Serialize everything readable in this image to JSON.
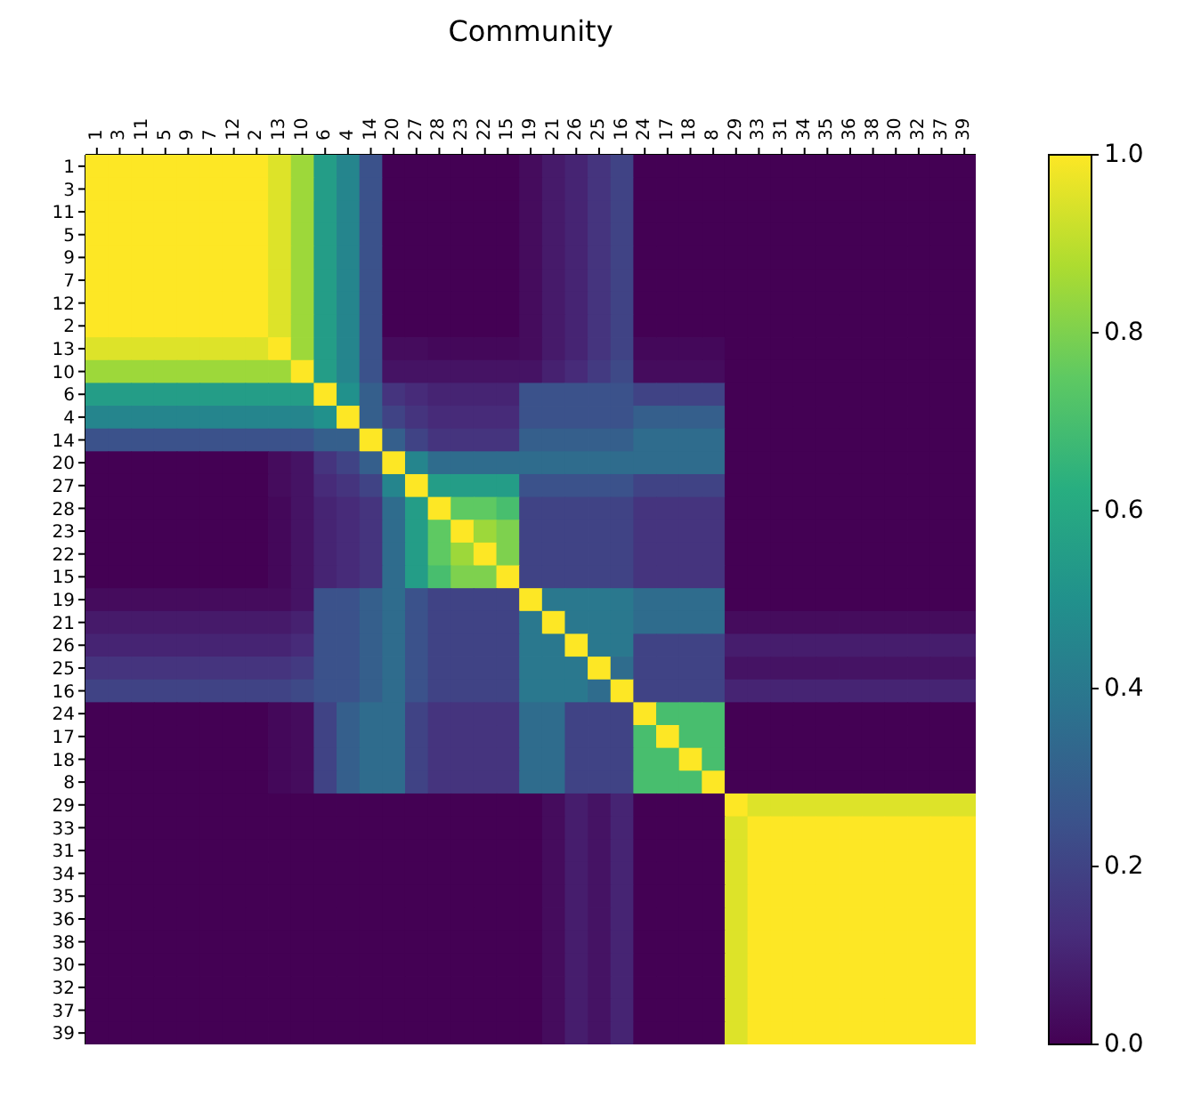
{
  "chart_data": {
    "type": "heatmap",
    "title": "Community",
    "categories": [
      "1",
      "3",
      "11",
      "5",
      "9",
      "7",
      "12",
      "2",
      "13",
      "10",
      "6",
      "4",
      "14",
      "20",
      "27",
      "28",
      "23",
      "22",
      "15",
      "19",
      "21",
      "26",
      "25",
      "16",
      "24",
      "17",
      "18",
      "8",
      "29",
      "33",
      "31",
      "34",
      "35",
      "36",
      "38",
      "30",
      "32",
      "37",
      "39"
    ],
    "y_categories": [
      "1",
      "3",
      "11",
      "5",
      "9",
      "7",
      "12",
      "2",
      "13",
      "10",
      "6",
      "4",
      "14",
      "20",
      "27",
      "28",
      "23",
      "22",
      "15",
      "19",
      "21",
      "26",
      "25",
      "16",
      "24",
      "17",
      "18",
      "8",
      "29",
      "33",
      "31",
      "34",
      "35",
      "36",
      "38",
      "30",
      "32",
      "37",
      "39"
    ],
    "cells": [
      [
        1,
        1,
        1,
        1,
        1,
        1,
        1,
        1,
        0.95,
        0.85,
        0.55,
        0.45,
        0.25,
        0,
        0,
        0,
        0,
        0,
        0,
        0.03,
        0.07,
        0.1,
        0.15,
        0.2,
        0,
        0,
        0,
        0,
        0,
        0,
        0,
        0,
        0,
        0,
        0,
        0,
        0,
        0,
        0
      ],
      [
        1,
        1,
        1,
        1,
        1,
        1,
        1,
        1,
        0.95,
        0.85,
        0.55,
        0.45,
        0.25,
        0,
        0,
        0,
        0,
        0,
        0,
        0.03,
        0.07,
        0.1,
        0.15,
        0.2,
        0,
        0,
        0,
        0,
        0,
        0,
        0,
        0,
        0,
        0,
        0,
        0,
        0,
        0,
        0
      ],
      [
        1,
        1,
        1,
        1,
        1,
        1,
        1,
        1,
        0.95,
        0.85,
        0.55,
        0.45,
        0.25,
        0,
        0,
        0,
        0,
        0,
        0,
        0.03,
        0.07,
        0.1,
        0.15,
        0.2,
        0,
        0,
        0,
        0,
        0,
        0,
        0,
        0,
        0,
        0,
        0,
        0,
        0,
        0,
        0
      ],
      [
        1,
        1,
        1,
        1,
        1,
        1,
        1,
        1,
        0.95,
        0.85,
        0.55,
        0.45,
        0.25,
        0,
        0,
        0,
        0,
        0,
        0,
        0.03,
        0.07,
        0.1,
        0.15,
        0.2,
        0,
        0,
        0,
        0,
        0,
        0,
        0,
        0,
        0,
        0,
        0,
        0,
        0,
        0,
        0
      ],
      [
        1,
        1,
        1,
        1,
        1,
        1,
        1,
        1,
        0.95,
        0.85,
        0.55,
        0.45,
        0.25,
        0,
        0,
        0,
        0,
        0,
        0,
        0.03,
        0.07,
        0.1,
        0.15,
        0.2,
        0,
        0,
        0,
        0,
        0,
        0,
        0,
        0,
        0,
        0,
        0,
        0,
        0,
        0,
        0
      ],
      [
        1,
        1,
        1,
        1,
        1,
        1,
        1,
        1,
        0.95,
        0.85,
        0.55,
        0.45,
        0.25,
        0,
        0,
        0,
        0,
        0,
        0,
        0.03,
        0.07,
        0.1,
        0.15,
        0.2,
        0,
        0,
        0,
        0,
        0,
        0,
        0,
        0,
        0,
        0,
        0,
        0,
        0,
        0,
        0
      ],
      [
        1,
        1,
        1,
        1,
        1,
        1,
        1,
        1,
        0.95,
        0.85,
        0.55,
        0.45,
        0.25,
        0,
        0,
        0,
        0,
        0,
        0,
        0.03,
        0.07,
        0.1,
        0.15,
        0.2,
        0,
        0,
        0,
        0,
        0,
        0,
        0,
        0,
        0,
        0,
        0,
        0,
        0,
        0,
        0
      ],
      [
        1,
        1,
        1,
        1,
        1,
        1,
        1,
        1,
        0.95,
        0.85,
        0.55,
        0.45,
        0.25,
        0,
        0,
        0,
        0,
        0,
        0,
        0.03,
        0.07,
        0.1,
        0.15,
        0.2,
        0,
        0,
        0,
        0,
        0,
        0,
        0,
        0,
        0,
        0,
        0,
        0,
        0,
        0,
        0
      ],
      [
        0.95,
        0.95,
        0.95,
        0.95,
        0.95,
        0.95,
        0.95,
        0.95,
        1,
        0.85,
        0.55,
        0.45,
        0.25,
        0.03,
        0.03,
        0.02,
        0.02,
        0.02,
        0.02,
        0.03,
        0.07,
        0.1,
        0.15,
        0.2,
        0.02,
        0.02,
        0.02,
        0.02,
        0,
        0,
        0,
        0,
        0,
        0,
        0,
        0,
        0,
        0,
        0
      ],
      [
        0.85,
        0.85,
        0.85,
        0.85,
        0.85,
        0.85,
        0.85,
        0.85,
        0.85,
        1,
        0.55,
        0.45,
        0.25,
        0.05,
        0.05,
        0.05,
        0.05,
        0.05,
        0.05,
        0.05,
        0.09,
        0.12,
        0.17,
        0.22,
        0.03,
        0.03,
        0.03,
        0.03,
        0,
        0,
        0,
        0,
        0,
        0,
        0,
        0,
        0,
        0,
        0
      ],
      [
        0.55,
        0.55,
        0.55,
        0.55,
        0.55,
        0.55,
        0.55,
        0.55,
        0.55,
        0.55,
        1,
        0.5,
        0.3,
        0.15,
        0.12,
        0.1,
        0.1,
        0.1,
        0.1,
        0.25,
        0.25,
        0.25,
        0.25,
        0.25,
        0.2,
        0.2,
        0.2,
        0.2,
        0,
        0,
        0,
        0,
        0,
        0,
        0,
        0,
        0,
        0,
        0
      ],
      [
        0.45,
        0.45,
        0.45,
        0.45,
        0.45,
        0.45,
        0.45,
        0.45,
        0.45,
        0.45,
        0.5,
        1,
        0.3,
        0.2,
        0.15,
        0.12,
        0.12,
        0.12,
        0.12,
        0.25,
        0.25,
        0.25,
        0.25,
        0.25,
        0.3,
        0.3,
        0.3,
        0.3,
        0,
        0,
        0,
        0,
        0,
        0,
        0,
        0,
        0,
        0,
        0
      ],
      [
        0.25,
        0.25,
        0.25,
        0.25,
        0.25,
        0.25,
        0.25,
        0.25,
        0.25,
        0.25,
        0.3,
        0.3,
        1,
        0.3,
        0.2,
        0.15,
        0.15,
        0.15,
        0.15,
        0.3,
        0.3,
        0.3,
        0.3,
        0.3,
        0.35,
        0.35,
        0.35,
        0.35,
        0,
        0,
        0,
        0,
        0,
        0,
        0,
        0,
        0,
        0,
        0
      ],
      [
        0,
        0,
        0,
        0,
        0,
        0,
        0,
        0,
        0.03,
        0.05,
        0.15,
        0.2,
        0.3,
        1,
        0.45,
        0.35,
        0.35,
        0.35,
        0.35,
        0.35,
        0.35,
        0.35,
        0.35,
        0.35,
        0.35,
        0.35,
        0.35,
        0.35,
        0,
        0,
        0,
        0,
        0,
        0,
        0,
        0,
        0,
        0,
        0
      ],
      [
        0,
        0,
        0,
        0,
        0,
        0,
        0,
        0,
        0.03,
        0.05,
        0.12,
        0.15,
        0.2,
        0.45,
        1,
        0.55,
        0.55,
        0.55,
        0.55,
        0.25,
        0.25,
        0.25,
        0.25,
        0.25,
        0.2,
        0.2,
        0.2,
        0.2,
        0,
        0,
        0,
        0,
        0,
        0,
        0,
        0,
        0,
        0,
        0
      ],
      [
        0,
        0,
        0,
        0,
        0,
        0,
        0,
        0,
        0.02,
        0.05,
        0.1,
        0.12,
        0.15,
        0.35,
        0.55,
        1,
        0.75,
        0.75,
        0.7,
        0.2,
        0.2,
        0.2,
        0.2,
        0.2,
        0.15,
        0.15,
        0.15,
        0.15,
        0,
        0,
        0,
        0,
        0,
        0,
        0,
        0,
        0,
        0,
        0
      ],
      [
        0,
        0,
        0,
        0,
        0,
        0,
        0,
        0,
        0.02,
        0.05,
        0.1,
        0.12,
        0.15,
        0.35,
        0.55,
        0.75,
        1,
        0.85,
        0.8,
        0.2,
        0.2,
        0.2,
        0.2,
        0.2,
        0.15,
        0.15,
        0.15,
        0.15,
        0,
        0,
        0,
        0,
        0,
        0,
        0,
        0,
        0,
        0,
        0
      ],
      [
        0,
        0,
        0,
        0,
        0,
        0,
        0,
        0,
        0.02,
        0.05,
        0.1,
        0.12,
        0.15,
        0.35,
        0.55,
        0.75,
        0.85,
        1,
        0.8,
        0.2,
        0.2,
        0.2,
        0.2,
        0.2,
        0.15,
        0.15,
        0.15,
        0.15,
        0,
        0,
        0,
        0,
        0,
        0,
        0,
        0,
        0,
        0,
        0
      ],
      [
        0,
        0,
        0,
        0,
        0,
        0,
        0,
        0,
        0.02,
        0.05,
        0.1,
        0.12,
        0.15,
        0.35,
        0.55,
        0.7,
        0.8,
        0.8,
        1,
        0.2,
        0.2,
        0.2,
        0.2,
        0.2,
        0.15,
        0.15,
        0.15,
        0.15,
        0,
        0,
        0,
        0,
        0,
        0,
        0,
        0,
        0,
        0,
        0
      ],
      [
        0.03,
        0.03,
        0.03,
        0.03,
        0.03,
        0.03,
        0.03,
        0.03,
        0.03,
        0.05,
        0.25,
        0.25,
        0.3,
        0.35,
        0.25,
        0.2,
        0.2,
        0.2,
        0.2,
        1,
        0.4,
        0.4,
        0.4,
        0.4,
        0.35,
        0.35,
        0.35,
        0.35,
        0,
        0,
        0,
        0,
        0,
        0,
        0,
        0,
        0,
        0,
        0
      ],
      [
        0.07,
        0.07,
        0.07,
        0.07,
        0.07,
        0.07,
        0.07,
        0.07,
        0.07,
        0.09,
        0.25,
        0.25,
        0.3,
        0.35,
        0.25,
        0.2,
        0.2,
        0.2,
        0.2,
        0.4,
        1,
        0.4,
        0.4,
        0.4,
        0.35,
        0.35,
        0.35,
        0.35,
        0.03,
        0.03,
        0.03,
        0.03,
        0.03,
        0.03,
        0.03,
        0.03,
        0.03,
        0.03,
        0.03
      ],
      [
        0.1,
        0.1,
        0.1,
        0.1,
        0.1,
        0.1,
        0.1,
        0.1,
        0.1,
        0.12,
        0.25,
        0.25,
        0.3,
        0.35,
        0.25,
        0.2,
        0.2,
        0.2,
        0.2,
        0.4,
        0.4,
        1,
        0.4,
        0.4,
        0.2,
        0.2,
        0.2,
        0.2,
        0.08,
        0.08,
        0.08,
        0.08,
        0.08,
        0.08,
        0.08,
        0.08,
        0.08,
        0.08,
        0.08
      ],
      [
        0.15,
        0.15,
        0.15,
        0.15,
        0.15,
        0.15,
        0.15,
        0.15,
        0.15,
        0.17,
        0.25,
        0.25,
        0.3,
        0.35,
        0.25,
        0.2,
        0.2,
        0.2,
        0.2,
        0.4,
        0.4,
        0.4,
        1,
        0.35,
        0.2,
        0.2,
        0.2,
        0.2,
        0.05,
        0.05,
        0.05,
        0.05,
        0.05,
        0.05,
        0.05,
        0.05,
        0.05,
        0.05,
        0.05
      ],
      [
        0.2,
        0.2,
        0.2,
        0.2,
        0.2,
        0.2,
        0.2,
        0.2,
        0.2,
        0.22,
        0.25,
        0.25,
        0.3,
        0.35,
        0.25,
        0.2,
        0.2,
        0.2,
        0.2,
        0.4,
        0.4,
        0.4,
        0.35,
        1,
        0.2,
        0.2,
        0.2,
        0.2,
        0.1,
        0.1,
        0.1,
        0.1,
        0.1,
        0.1,
        0.1,
        0.1,
        0.1,
        0.1,
        0.1
      ],
      [
        0,
        0,
        0,
        0,
        0,
        0,
        0,
        0,
        0.02,
        0.03,
        0.2,
        0.3,
        0.35,
        0.35,
        0.2,
        0.15,
        0.15,
        0.15,
        0.15,
        0.35,
        0.35,
        0.2,
        0.2,
        0.2,
        1,
        0.7,
        0.7,
        0.7,
        0,
        0,
        0,
        0,
        0,
        0,
        0,
        0,
        0,
        0,
        0
      ],
      [
        0,
        0,
        0,
        0,
        0,
        0,
        0,
        0,
        0.02,
        0.03,
        0.2,
        0.3,
        0.35,
        0.35,
        0.2,
        0.15,
        0.15,
        0.15,
        0.15,
        0.35,
        0.35,
        0.2,
        0.2,
        0.2,
        0.7,
        1,
        0.7,
        0.7,
        0,
        0,
        0,
        0,
        0,
        0,
        0,
        0,
        0,
        0,
        0
      ],
      [
        0,
        0,
        0,
        0,
        0,
        0,
        0,
        0,
        0.02,
        0.03,
        0.2,
        0.3,
        0.35,
        0.35,
        0.2,
        0.15,
        0.15,
        0.15,
        0.15,
        0.35,
        0.35,
        0.2,
        0.2,
        0.2,
        0.7,
        0.7,
        1,
        0.7,
        0,
        0,
        0,
        0,
        0,
        0,
        0,
        0,
        0,
        0,
        0
      ],
      [
        0,
        0,
        0,
        0,
        0,
        0,
        0,
        0,
        0.02,
        0.03,
        0.2,
        0.3,
        0.35,
        0.35,
        0.2,
        0.15,
        0.15,
        0.15,
        0.15,
        0.35,
        0.35,
        0.2,
        0.2,
        0.2,
        0.7,
        0.7,
        0.7,
        1,
        0,
        0,
        0,
        0,
        0,
        0,
        0,
        0,
        0,
        0,
        0
      ],
      [
        0,
        0,
        0,
        0,
        0,
        0,
        0,
        0,
        0,
        0,
        0,
        0,
        0,
        0,
        0,
        0,
        0,
        0,
        0,
        0,
        0.03,
        0.08,
        0.05,
        0.1,
        0,
        0,
        0,
        0,
        1,
        0.95,
        0.95,
        0.95,
        0.95,
        0.95,
        0.95,
        0.95,
        0.95,
        0.95,
        0.95
      ],
      [
        0,
        0,
        0,
        0,
        0,
        0,
        0,
        0,
        0,
        0,
        0,
        0,
        0,
        0,
        0,
        0,
        0,
        0,
        0,
        0,
        0.03,
        0.08,
        0.05,
        0.1,
        0,
        0,
        0,
        0,
        0.95,
        1,
        1,
        1,
        1,
        1,
        1,
        1,
        1,
        1,
        1
      ],
      [
        0,
        0,
        0,
        0,
        0,
        0,
        0,
        0,
        0,
        0,
        0,
        0,
        0,
        0,
        0,
        0,
        0,
        0,
        0,
        0,
        0.03,
        0.08,
        0.05,
        0.1,
        0,
        0,
        0,
        0,
        0.95,
        1,
        1,
        1,
        1,
        1,
        1,
        1,
        1,
        1,
        1
      ],
      [
        0,
        0,
        0,
        0,
        0,
        0,
        0,
        0,
        0,
        0,
        0,
        0,
        0,
        0,
        0,
        0,
        0,
        0,
        0,
        0,
        0.03,
        0.08,
        0.05,
        0.1,
        0,
        0,
        0,
        0,
        0.95,
        1,
        1,
        1,
        1,
        1,
        1,
        1,
        1,
        1,
        1
      ],
      [
        0,
        0,
        0,
        0,
        0,
        0,
        0,
        0,
        0,
        0,
        0,
        0,
        0,
        0,
        0,
        0,
        0,
        0,
        0,
        0,
        0.03,
        0.08,
        0.05,
        0.1,
        0,
        0,
        0,
        0,
        0.95,
        1,
        1,
        1,
        1,
        1,
        1,
        1,
        1,
        1,
        1
      ],
      [
        0,
        0,
        0,
        0,
        0,
        0,
        0,
        0,
        0,
        0,
        0,
        0,
        0,
        0,
        0,
        0,
        0,
        0,
        0,
        0,
        0.03,
        0.08,
        0.05,
        0.1,
        0,
        0,
        0,
        0,
        0.95,
        1,
        1,
        1,
        1,
        1,
        1,
        1,
        1,
        1,
        1
      ],
      [
        0,
        0,
        0,
        0,
        0,
        0,
        0,
        0,
        0,
        0,
        0,
        0,
        0,
        0,
        0,
        0,
        0,
        0,
        0,
        0,
        0.03,
        0.08,
        0.05,
        0.1,
        0,
        0,
        0,
        0,
        0.95,
        1,
        1,
        1,
        1,
        1,
        1,
        1,
        1,
        1,
        1
      ],
      [
        0,
        0,
        0,
        0,
        0,
        0,
        0,
        0,
        0,
        0,
        0,
        0,
        0,
        0,
        0,
        0,
        0,
        0,
        0,
        0,
        0.03,
        0.08,
        0.05,
        0.1,
        0,
        0,
        0,
        0,
        0.95,
        1,
        1,
        1,
        1,
        1,
        1,
        1,
        1,
        1,
        1
      ],
      [
        0,
        0,
        0,
        0,
        0,
        0,
        0,
        0,
        0,
        0,
        0,
        0,
        0,
        0,
        0,
        0,
        0,
        0,
        0,
        0,
        0.03,
        0.08,
        0.05,
        0.1,
        0,
        0,
        0,
        0,
        0.95,
        1,
        1,
        1,
        1,
        1,
        1,
        1,
        1,
        1,
        1
      ],
      [
        0,
        0,
        0,
        0,
        0,
        0,
        0,
        0,
        0,
        0,
        0,
        0,
        0,
        0,
        0,
        0,
        0,
        0,
        0,
        0,
        0.03,
        0.08,
        0.05,
        0.1,
        0,
        0,
        0,
        0,
        0.95,
        1,
        1,
        1,
        1,
        1,
        1,
        1,
        1,
        1,
        1
      ],
      [
        0,
        0,
        0,
        0,
        0,
        0,
        0,
        0,
        0,
        0,
        0,
        0,
        0,
        0,
        0,
        0,
        0,
        0,
        0,
        0,
        0.03,
        0.08,
        0.05,
        0.1,
        0,
        0,
        0,
        0,
        0.95,
        1,
        1,
        1,
        1,
        1,
        1,
        1,
        1,
        1,
        1
      ]
    ],
    "clim": [
      0,
      1
    ],
    "cticks": [
      {
        "value": 0,
        "label": "0.0"
      },
      {
        "value": 0.2,
        "label": "0.2"
      },
      {
        "value": 0.4,
        "label": "0.4"
      },
      {
        "value": 0.6,
        "label": "0.6"
      },
      {
        "value": 0.8,
        "label": "0.8"
      },
      {
        "value": 1,
        "label": "1.0"
      }
    ]
  }
}
